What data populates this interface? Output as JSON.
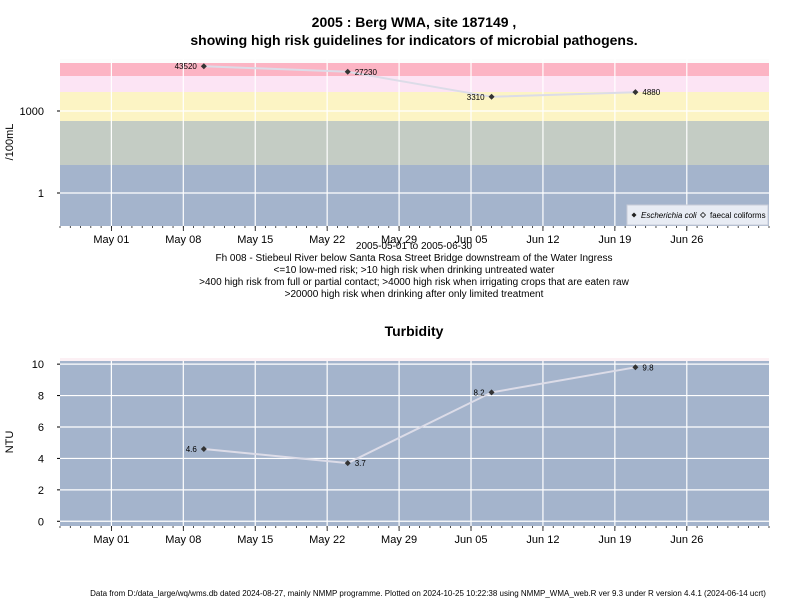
{
  "page": {
    "title_line1": "2005 : Berg WMA, site 187149 ,",
    "title_line2": "showing high risk guidelines for indicators of microbial pathogens.",
    "footer": "Data from D:/data_large/wq/wms.db dated 2024-08-27, mainly NMMP programme. Plotted on 2024-10-25 10:22:38 using NMMP_WMA_web.R ver 9.3 under R version 4.4.1 (2024-06-14 ucrt)"
  },
  "colors": {
    "band_low": "#a4b4cc",
    "band_mid": "#c4ccc4",
    "band_irrigation": "#fcf4c4",
    "band_contact": "#fce4f4",
    "band_limited": "#fcb4c4",
    "band_top": "#fcfcfc",
    "turbidity_bg": "#a4b4cc",
    "line": "#dcdce8",
    "grid": "#ffffff",
    "point": "#333333"
  },
  "chart_data": [
    {
      "type": "line",
      "title": "",
      "ylabel": "/100mL",
      "xlabel": "2005-05-01 to 2005-06-30",
      "y_scale": "log",
      "x_range": [
        "2005-04-26",
        "2005-07-04"
      ],
      "y_tick_labels": [
        "1",
        "1000"
      ],
      "x_tick_labels": [
        "May 01",
        "May 08",
        "May 15",
        "May 22",
        "May 29",
        "Jun 05",
        "Jun 12",
        "Jun 19",
        "Jun 26"
      ],
      "x_ticks": [
        "2005-05-01",
        "2005-05-08",
        "2005-05-15",
        "2005-05-22",
        "2005-05-29",
        "2005-06-05",
        "2005-06-12",
        "2005-06-19",
        "2005-06-26"
      ],
      "grid": true,
      "notes": [
        "Fh 008 - Stiebeul River below Santa Rosa Street Bridge downstream of the Water Ingress",
        "<=10 low-med risk; >10 high risk when drinking untreated water",
        ">400 high risk from full or partial contact; >4000 high risk when irrigating crops that are eaten raw",
        ">20000 high risk when drinking after only limited treatment"
      ],
      "legend": {
        "placement": "bottom-right",
        "entries": [
          {
            "label": "Escherichia coli",
            "italic": true,
            "marker": "filled-diamond"
          },
          {
            "label": "faecal coliforms",
            "italic": false,
            "marker": "open-diamond"
          }
        ]
      },
      "series": [
        {
          "name": "Escherichia coli",
          "x": [
            "2005-05-10",
            "2005-05-24",
            "2005-06-07",
            "2005-06-21"
          ],
          "y": [
            43520,
            27230,
            3310,
            4880
          ],
          "labels": [
            "43520",
            "27230",
            "3310",
            "4880"
          ]
        }
      ]
    },
    {
      "type": "line",
      "title": "Turbidity",
      "ylabel": "NTU",
      "xlabel": "",
      "y_range": [
        -0.3,
        10.2
      ],
      "y_ticks": [
        0,
        2,
        4,
        6,
        8,
        10
      ],
      "x_range": [
        "2005-04-26",
        "2005-07-04"
      ],
      "x_tick_labels": [
        "May 01",
        "May 08",
        "May 15",
        "May 22",
        "May 29",
        "Jun 05",
        "Jun 12",
        "Jun 19",
        "Jun 26"
      ],
      "x_ticks": [
        "2005-05-01",
        "2005-05-08",
        "2005-05-15",
        "2005-05-22",
        "2005-05-29",
        "2005-06-05",
        "2005-06-12",
        "2005-06-19",
        "2005-06-26"
      ],
      "grid": true,
      "series": [
        {
          "x": [
            "2005-05-10",
            "2005-05-24",
            "2005-06-07",
            "2005-06-21"
          ],
          "y": [
            4.6,
            3.7,
            8.2,
            9.8
          ],
          "labels": [
            "4.6",
            "3.7",
            "8.2",
            "9.8"
          ]
        }
      ]
    }
  ]
}
